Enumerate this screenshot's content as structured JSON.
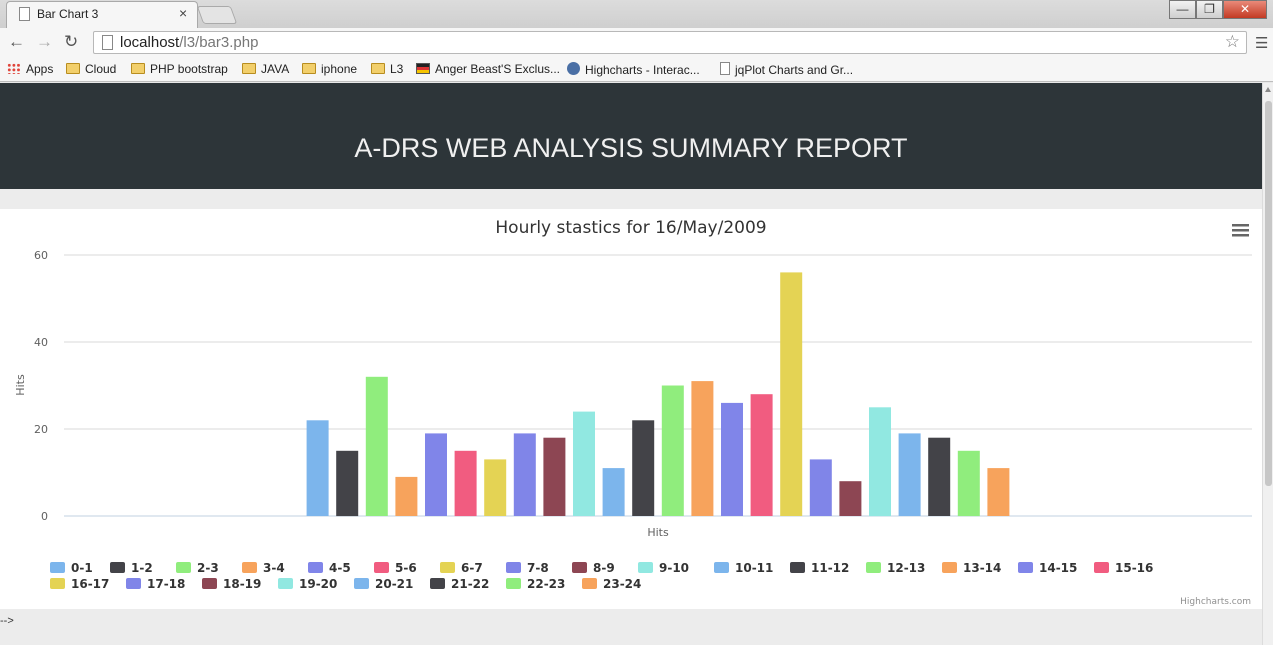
{
  "browser": {
    "tab_title": "Bar Chart 3",
    "tab_close": "×",
    "url_host": "localhost",
    "url_path": "/l3/bar3.php",
    "bookmarks": [
      "Apps",
      "Cloud",
      "PHP bootstrap",
      "JAVA",
      "iphone",
      "L3",
      "Anger Beast'S Exclus...",
      "Highcharts - Interac...",
      "jqPlot Charts and Gr..."
    ],
    "window_buttons": [
      "—",
      "❐",
      "✕"
    ]
  },
  "page": {
    "header_title": "A-DRS WEB ANALYSIS SUMMARY REPORT",
    "trailing_text": "-->"
  },
  "chart_data": {
    "type": "bar",
    "title": "Hourly stastics for 16/May/2009",
    "xlabel": "Hits",
    "ylabel": "Hits",
    "ylim": [
      0,
      60
    ],
    "yticks": [
      0,
      20,
      40,
      60
    ],
    "grid": true,
    "legend_position": "bottom",
    "credits": "Highcharts.com",
    "colors": [
      "#7cb5ec",
      "#434348",
      "#90ed7d",
      "#f7a35c",
      "#8085e9",
      "#f15c80",
      "#e4d354",
      "#8085e8",
      "#8d4653",
      "#91e8e1"
    ],
    "series": [
      {
        "name": "0-1",
        "value": 22
      },
      {
        "name": "1-2",
        "value": 15
      },
      {
        "name": "2-3",
        "value": 32
      },
      {
        "name": "3-4",
        "value": 9
      },
      {
        "name": "4-5",
        "value": 19
      },
      {
        "name": "5-6",
        "value": 15
      },
      {
        "name": "6-7",
        "value": 13
      },
      {
        "name": "7-8",
        "value": 19
      },
      {
        "name": "8-9",
        "value": 18
      },
      {
        "name": "9-10",
        "value": 24
      },
      {
        "name": "10-11",
        "value": 11
      },
      {
        "name": "11-12",
        "value": 22
      },
      {
        "name": "12-13",
        "value": 30
      },
      {
        "name": "13-14",
        "value": 31
      },
      {
        "name": "14-15",
        "value": 26
      },
      {
        "name": "15-16",
        "value": 28
      },
      {
        "name": "16-17",
        "value": 56
      },
      {
        "name": "17-18",
        "value": 13
      },
      {
        "name": "18-19",
        "value": 8
      },
      {
        "name": "19-20",
        "value": 25
      },
      {
        "name": "20-21",
        "value": 19
      },
      {
        "name": "21-22",
        "value": 18
      },
      {
        "name": "22-23",
        "value": 15
      },
      {
        "name": "23-24",
        "value": 11
      }
    ]
  }
}
